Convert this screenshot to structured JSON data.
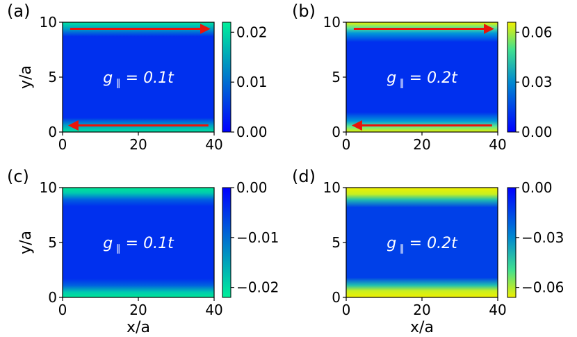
{
  "chart_data": [
    {
      "type": "heatmap",
      "panel_label": "(a)",
      "annotation": {
        "g": "g",
        "sub": "∥",
        "rest": " = 0.1t"
      },
      "ylabel": "y/a",
      "xlabel": "",
      "xlim": [
        0,
        40
      ],
      "ylim": [
        0,
        10
      ],
      "xticks": [
        "0",
        "20",
        "40"
      ],
      "yticks": [
        "0",
        "5",
        "10"
      ],
      "colorbar": {
        "range": [
          0.0,
          0.022
        ],
        "ticks": [
          0.0,
          0.01,
          0.02
        ],
        "tick_labels": [
          "0.00",
          "0.01",
          "0.02"
        ],
        "colormap": "winter"
      },
      "edge_profile": {
        "max_value": 0.022,
        "edge_width_y": 0.9
      },
      "arrows": [
        {
          "from": [
            2,
            9.4
          ],
          "to": [
            38.5,
            9.4
          ],
          "color": "#e8140a"
        },
        {
          "from": [
            38.5,
            0.6
          ],
          "to": [
            2,
            0.6
          ],
          "color": "#e8140a"
        }
      ]
    },
    {
      "type": "heatmap",
      "panel_label": "(b)",
      "annotation": {
        "g": "g",
        "sub": "∥",
        "rest": " = 0.2t"
      },
      "ylabel": "",
      "xlabel": "",
      "xlim": [
        0,
        40
      ],
      "ylim": [
        0,
        10
      ],
      "xticks": [
        "0",
        "20",
        "40"
      ],
      "yticks": [
        "0",
        "5",
        "10"
      ],
      "colorbar": {
        "range": [
          0.0,
          0.066
        ],
        "ticks": [
          0.0,
          0.03,
          0.06
        ],
        "tick_labels": [
          "0.00",
          "0.03",
          "0.06"
        ],
        "colormap": "jet-like"
      },
      "edge_profile": {
        "max_value": 0.066,
        "edge_width_y": 1.3
      },
      "arrows": [
        {
          "from": [
            2,
            9.4
          ],
          "to": [
            38.5,
            9.4
          ],
          "color": "#e8140a"
        },
        {
          "from": [
            38.5,
            0.6
          ],
          "to": [
            2,
            0.6
          ],
          "color": "#e8140a"
        }
      ]
    },
    {
      "type": "heatmap",
      "panel_label": "(c)",
      "annotation": {
        "g": "g",
        "sub": "∥",
        "rest": " = 0.1t"
      },
      "ylabel": "y/a",
      "xlabel": "x/a",
      "xlim": [
        0,
        40
      ],
      "ylim": [
        0,
        10
      ],
      "xticks": [
        "0",
        "20",
        "40"
      ],
      "yticks": [
        "0",
        "5",
        "10"
      ],
      "colorbar": {
        "range": [
          -0.022,
          0.0
        ],
        "ticks": [
          0.0,
          -0.01,
          -0.02
        ],
        "tick_labels": [
          "0.00",
          "−0.01",
          "−0.02"
        ],
        "colormap": "winter_r"
      },
      "edge_profile": {
        "max_value": -0.022,
        "edge_width_y": 1.1
      },
      "arrows": []
    },
    {
      "type": "heatmap",
      "panel_label": "(d)",
      "annotation": {
        "g": "g",
        "sub": "∥",
        "rest": " = 0.2t"
      },
      "ylabel": "",
      "xlabel": "x/a",
      "xlim": [
        0,
        40
      ],
      "ylim": [
        0,
        10
      ],
      "xticks": [
        "0",
        "20",
        "40"
      ],
      "yticks": [
        "0",
        "5",
        "10"
      ],
      "colorbar": {
        "range": [
          -0.066,
          0.0
        ],
        "ticks": [
          0.0,
          -0.03,
          -0.06
        ],
        "tick_labels": [
          "0.00",
          "−0.03",
          "−0.06"
        ],
        "colormap": "jet-like_r"
      },
      "edge_profile": {
        "max_value": -0.066,
        "edge_width_y": 1.6
      },
      "arrows": []
    }
  ]
}
